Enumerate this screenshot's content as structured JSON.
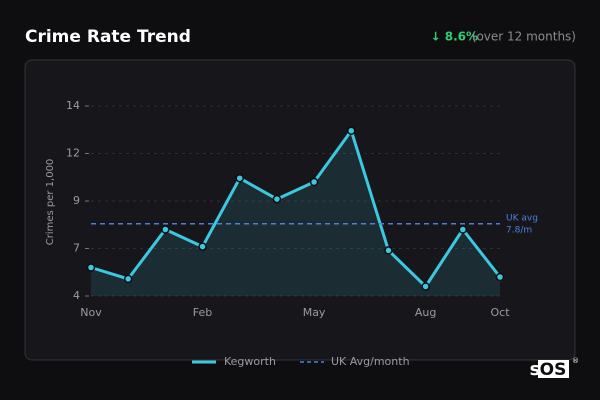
{
  "chart_data": {
    "type": "area-line",
    "title": "Crime Rate Trend",
    "change_label": "↓ 8.6%",
    "change_note": "(over 12 months)",
    "y_label": "Crimes per 1,000",
    "categories": [
      "Nov",
      null,
      null,
      "Feb",
      null,
      null,
      "May",
      null,
      null,
      "Aug",
      null,
      "Oct"
    ],
    "series": [
      {
        "name": "Kegworth",
        "color": "#3cc8e0",
        "values": [
          5.5,
          4.9,
          7.5,
          6.6,
          10.2,
          9.1,
          10.0,
          12.7,
          6.4,
          4.5,
          7.5,
          5.0
        ]
      }
    ],
    "reference": {
      "name": "UK Avg/month",
      "color": "#4a7fe0",
      "value": 7.8,
      "annotation": [
        "UK avg",
        "7.8/m"
      ]
    },
    "ylim": [
      4,
      14
    ],
    "yticks": [
      4,
      {
        "value": 6.5,
        "label": "7"
      },
      9,
      {
        "value": 11.5,
        "label": "12"
      },
      14
    ],
    "grid": true,
    "logo": {
      "text": "sc",
      "boxed": "OS",
      "mark": "®"
    }
  }
}
